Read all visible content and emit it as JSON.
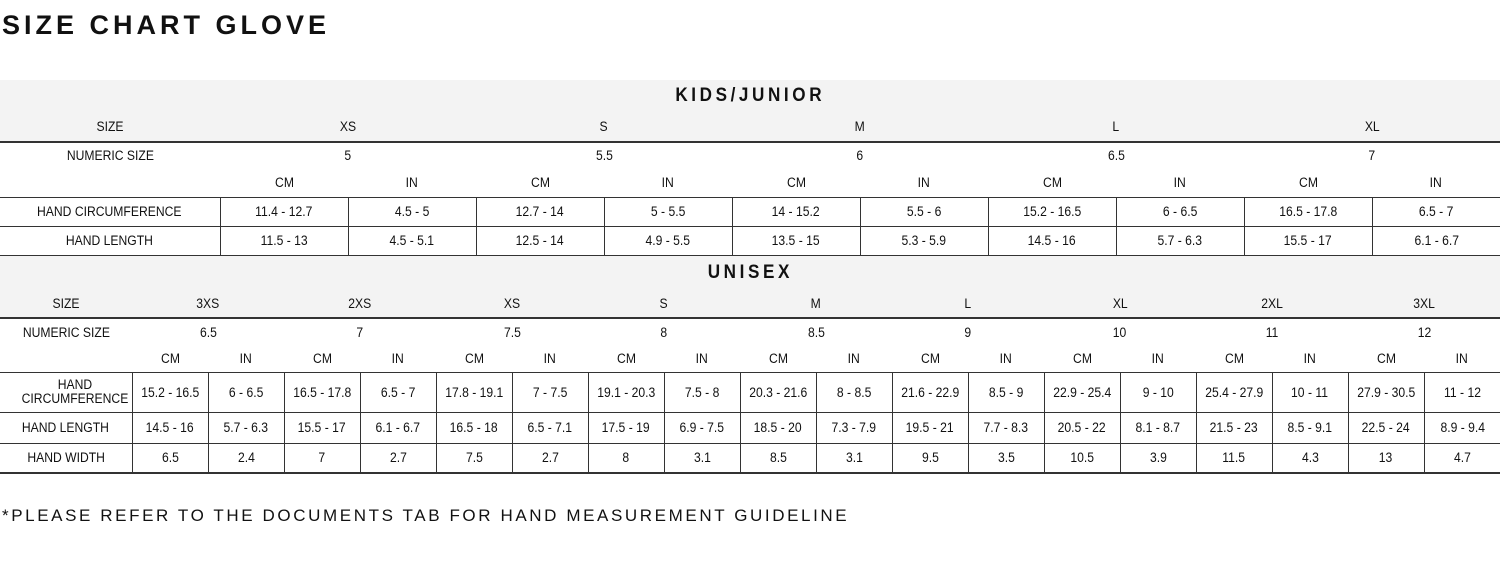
{
  "title": "SIZE CHART GLOVE",
  "note": "*PLEASE REFER TO THE DOCUMENTS TAB FOR HAND MEASUREMENT GUIDELINE",
  "kids": {
    "heading": "KIDS/JUNIOR",
    "size_label": "SIZE",
    "numeric_label": "NUMERIC SIZE",
    "cm": "CM",
    "in": "IN",
    "sizes": [
      "XS",
      "S",
      "M",
      "L",
      "XL"
    ],
    "numeric": [
      "5",
      "5.5",
      "6",
      "6.5",
      "7"
    ],
    "rows": [
      {
        "label": "HAND CIRCUMFERENCE",
        "values": [
          "11.4 - 12.7",
          "4.5 - 5",
          "12.7 - 14",
          "5 - 5.5",
          "14 - 15.2",
          "5.5 - 6",
          "15.2 - 16.5",
          "6 - 6.5",
          "16.5 - 17.8",
          "6.5 - 7"
        ]
      },
      {
        "label": "HAND LENGTH",
        "values": [
          "11.5 - 13",
          "4.5 - 5.1",
          "12.5 - 14",
          "4.9 - 5.5",
          "13.5 - 15",
          "5.3 - 5.9",
          "14.5 - 16",
          "5.7 - 6.3",
          "15.5 - 17",
          "6.1 - 6.7"
        ]
      }
    ]
  },
  "unisex": {
    "heading": "UNISEX",
    "size_label": "SIZE",
    "numeric_label": "NUMERIC SIZE",
    "cm": "CM",
    "in": "IN",
    "sizes": [
      "3XS",
      "2XS",
      "XS",
      "S",
      "M",
      "L",
      "XL",
      "2XL",
      "3XL"
    ],
    "numeric": [
      "6.5",
      "7",
      "7.5",
      "8",
      "8.5",
      "9",
      "10",
      "11",
      "12"
    ],
    "rows": [
      {
        "label": "HAND CIRCUMFERENCE",
        "values": [
          "15.2 - 16.5",
          "6 - 6.5",
          "16.5 - 17.8",
          "6.5 - 7",
          "17.8 - 19.1",
          "7 - 7.5",
          "19.1 - 20.3",
          "7.5 - 8",
          "20.3 - 21.6",
          "8 - 8.5",
          "21.6 - 22.9",
          "8.5 - 9",
          "22.9 - 25.4",
          "9 - 10",
          "25.4 - 27.9",
          "10 - 11",
          "27.9 - 30.5",
          "11 - 12"
        ]
      },
      {
        "label": "HAND LENGTH",
        "values": [
          "14.5 - 16",
          "5.7 - 6.3",
          "15.5 - 17",
          "6.1 - 6.7",
          "16.5 - 18",
          "6.5 - 7.1",
          "17.5 - 19",
          "6.9 - 7.5",
          "18.5 - 20",
          "7.3 - 7.9",
          "19.5 - 21",
          "7.7 - 8.3",
          "20.5 - 22",
          "8.1 - 8.7",
          "21.5 - 23",
          "8.5 - 9.1",
          "22.5 - 24",
          "8.9 - 9.4"
        ]
      },
      {
        "label": "HAND WIDTH",
        "values": [
          "6.5",
          "2.4",
          "7",
          "2.7",
          "7.5",
          "2.7",
          "8",
          "3.1",
          "8.5",
          "3.1",
          "9.5",
          "3.5",
          "10.5",
          "3.9",
          "11.5",
          "4.3",
          "13",
          "4.7"
        ]
      }
    ]
  }
}
